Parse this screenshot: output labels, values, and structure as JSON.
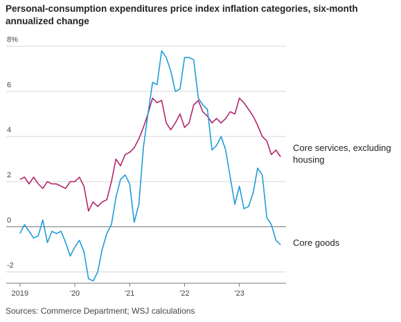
{
  "chart_data": {
    "type": "line",
    "title": "Personal-consumption expenditures price index inflation categories, six-month annualized change",
    "source": "Sources: Commerce Department; WSJ calculations",
    "x": [
      2019,
      2019.083,
      2019.167,
      2019.25,
      2019.333,
      2019.417,
      2019.5,
      2019.583,
      2019.667,
      2019.75,
      2019.833,
      2019.917,
      2020,
      2020.083,
      2020.167,
      2020.25,
      2020.333,
      2020.417,
      2020.5,
      2020.583,
      2020.667,
      2020.75,
      2020.833,
      2020.917,
      2021,
      2021.083,
      2021.167,
      2021.25,
      2021.333,
      2021.417,
      2021.5,
      2021.583,
      2021.667,
      2021.75,
      2021.833,
      2021.917,
      2022,
      2022.083,
      2022.167,
      2022.25,
      2022.333,
      2022.417,
      2022.5,
      2022.583,
      2022.667,
      2022.75,
      2022.833,
      2022.917,
      2023,
      2023.083,
      2023.167,
      2023.25,
      2023.333,
      2023.417,
      2023.5,
      2023.583,
      2023.667,
      2023.75
    ],
    "series": [
      {
        "name": "Core services, excluding housing",
        "color": "#b3246d",
        "values": [
          2.1,
          2.2,
          1.9,
          2.2,
          1.9,
          1.7,
          2.0,
          1.9,
          1.9,
          1.8,
          1.7,
          2.0,
          2.0,
          2.2,
          1.8,
          0.7,
          1.1,
          0.9,
          1.1,
          1.2,
          2.0,
          3.0,
          2.7,
          3.2,
          3.3,
          3.5,
          3.9,
          4.4,
          5.0,
          5.7,
          5.5,
          5.6,
          4.6,
          4.3,
          4.6,
          5.0,
          4.4,
          4.6,
          5.4,
          5.6,
          5.1,
          4.9,
          4.6,
          4.8,
          4.6,
          4.8,
          5.1,
          5.0,
          5.7,
          5.5,
          5.2,
          4.9,
          4.5,
          4.0,
          3.8,
          3.2,
          3.4,
          3.1
        ]
      },
      {
        "name": "Core goods",
        "color": "#1f9bd7",
        "values": [
          -0.3,
          0.1,
          -0.2,
          -0.5,
          -0.4,
          0.3,
          -0.7,
          -0.2,
          -0.3,
          -0.2,
          -0.7,
          -1.3,
          -0.9,
          -0.6,
          -1.1,
          -2.3,
          -2.4,
          -2.0,
          -1.0,
          -0.3,
          0.1,
          1.3,
          2.1,
          2.3,
          1.9,
          0.2,
          1.0,
          3.5,
          5.0,
          6.4,
          6.3,
          7.8,
          7.5,
          6.9,
          6.0,
          6.1,
          7.5,
          7.5,
          7.4,
          5.7,
          5.4,
          5.2,
          3.4,
          3.6,
          4.0,
          3.4,
          2.2,
          1.0,
          1.8,
          0.8,
          0.9,
          1.5,
          2.6,
          2.3,
          0.4,
          0.1,
          -0.6,
          -0.8
        ]
      }
    ],
    "xlim": [
      2018.75,
      2023.85
    ],
    "xticks": [
      {
        "value": 2019,
        "label": "2019"
      },
      {
        "value": 2020,
        "label": "'20"
      },
      {
        "value": 2021,
        "label": "'21"
      },
      {
        "value": 2022,
        "label": "'22"
      },
      {
        "value": 2023,
        "label": "'23"
      }
    ],
    "ylim": [
      -2.5,
      8.3
    ],
    "yticks": [
      {
        "value": 8,
        "label": "8%"
      },
      6,
      4,
      2,
      0,
      -2
    ],
    "grid": true
  }
}
